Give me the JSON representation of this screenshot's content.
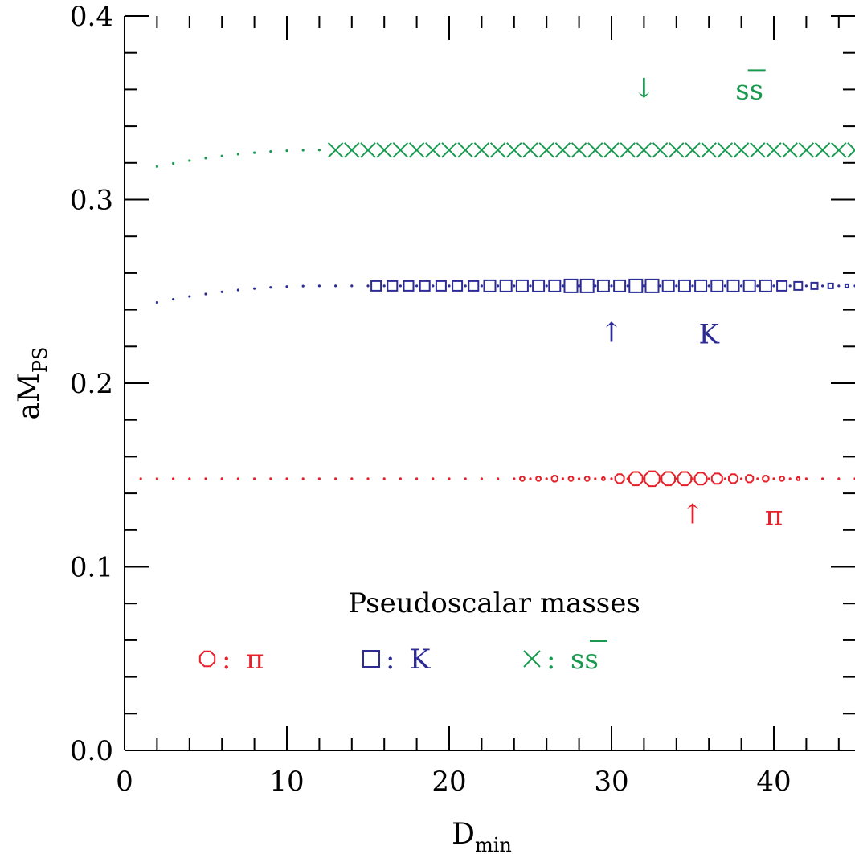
{
  "chart_data": {
    "type": "scatter",
    "title": "Pseudoscalar masses",
    "xlabel": {
      "main": "D",
      "sub": "min"
    },
    "ylabel": {
      "main": "aM",
      "sub": "PS"
    },
    "xlim": [
      0,
      45
    ],
    "ylim": [
      0,
      0.4
    ],
    "xticks": [
      "0",
      "10",
      "20",
      "30",
      "40"
    ],
    "yticks": [
      "0.0",
      "0.1",
      "0.2",
      "0.3",
      "0.4"
    ],
    "colors": {
      "pi": "#e8202a",
      "K": "#2c2c96",
      "ss": "#1a9a50"
    },
    "series": [
      {
        "name": "π",
        "marker": "octagon",
        "value": 0.148,
        "x_start": 1,
        "x_end": 45,
        "marker_sizes": [
          {
            "x": 24.5,
            "r": 3
          },
          {
            "x": 25.5,
            "r": 3
          },
          {
            "x": 26.5,
            "r": 4
          },
          {
            "x": 27.5,
            "r": 3
          },
          {
            "x": 28.5,
            "r": 3
          },
          {
            "x": 29.5,
            "r": 2
          },
          {
            "x": 30.5,
            "r": 6
          },
          {
            "x": 31.5,
            "r": 9
          },
          {
            "x": 32.5,
            "r": 10
          },
          {
            "x": 33.5,
            "r": 9
          },
          {
            "x": 34.5,
            "r": 9
          },
          {
            "x": 35.5,
            "r": 8
          },
          {
            "x": 36.5,
            "r": 7
          },
          {
            "x": 37.5,
            "r": 6
          },
          {
            "x": 38.5,
            "r": 5
          },
          {
            "x": 39.5,
            "r": 4
          },
          {
            "x": 40.5,
            "r": 3
          },
          {
            "x": 41.5,
            "r": 2
          }
        ]
      },
      {
        "name": "K",
        "marker": "square",
        "value": 0.253,
        "x_start": 2,
        "x_end": 45,
        "marker_sizes": [
          {
            "x": 15.5,
            "r": 6
          },
          {
            "x": 16.5,
            "r": 6
          },
          {
            "x": 17.5,
            "r": 6
          },
          {
            "x": 18.5,
            "r": 6
          },
          {
            "x": 19.5,
            "r": 6
          },
          {
            "x": 20.5,
            "r": 6
          },
          {
            "x": 21.5,
            "r": 6
          },
          {
            "x": 22.5,
            "r": 7
          },
          {
            "x": 23.5,
            "r": 7
          },
          {
            "x": 24.5,
            "r": 7
          },
          {
            "x": 25.5,
            "r": 7
          },
          {
            "x": 26.5,
            "r": 7
          },
          {
            "x": 27.5,
            "r": 8
          },
          {
            "x": 28.5,
            "r": 8
          },
          {
            "x": 29.5,
            "r": 7
          },
          {
            "x": 30.5,
            "r": 7
          },
          {
            "x": 31.5,
            "r": 8
          },
          {
            "x": 32.5,
            "r": 8
          },
          {
            "x": 33.5,
            "r": 7
          },
          {
            "x": 34.5,
            "r": 7
          },
          {
            "x": 35.5,
            "r": 7
          },
          {
            "x": 36.5,
            "r": 7
          },
          {
            "x": 37.5,
            "r": 7
          },
          {
            "x": 38.5,
            "r": 7
          },
          {
            "x": 39.5,
            "r": 7
          },
          {
            "x": 40.5,
            "r": 6
          },
          {
            "x": 41.5,
            "r": 5
          },
          {
            "x": 42.5,
            "r": 4
          },
          {
            "x": 43.5,
            "r": 3
          },
          {
            "x": 44.5,
            "r": 2
          }
        ]
      },
      {
        "name": "ss̄",
        "marker": "cross",
        "value": 0.327,
        "x_start": 2,
        "x_end": 45,
        "marker_x_start": 13,
        "marker_r": 9
      }
    ],
    "annotations": [
      {
        "series": "ss̄",
        "arrow": "↓",
        "arrow_x": 32,
        "arrow_y": 0.36,
        "label": "ss",
        "label_x": 38.5,
        "label_y": 0.36,
        "overline": true
      },
      {
        "series": "K",
        "arrow": "↑",
        "arrow_x": 30,
        "arrow_y": 0.227,
        "label": "K",
        "label_x": 36,
        "label_y": 0.227,
        "overline": false
      },
      {
        "series": "π",
        "arrow": "↑",
        "arrow_x": 35,
        "arrow_y": 0.128,
        "label": "π",
        "label_x": 40,
        "label_y": 0.128,
        "overline": false
      }
    ],
    "legend": {
      "placement": "bottom-left",
      "items": [
        {
          "marker": "octagon",
          "symbol": "π",
          "color_key": "pi",
          "overline": false
        },
        {
          "marker": "square",
          "symbol": "K",
          "color_key": "K",
          "overline": false
        },
        {
          "marker": "cross",
          "symbol": "ss",
          "color_key": "ss",
          "overline": true
        }
      ]
    }
  }
}
